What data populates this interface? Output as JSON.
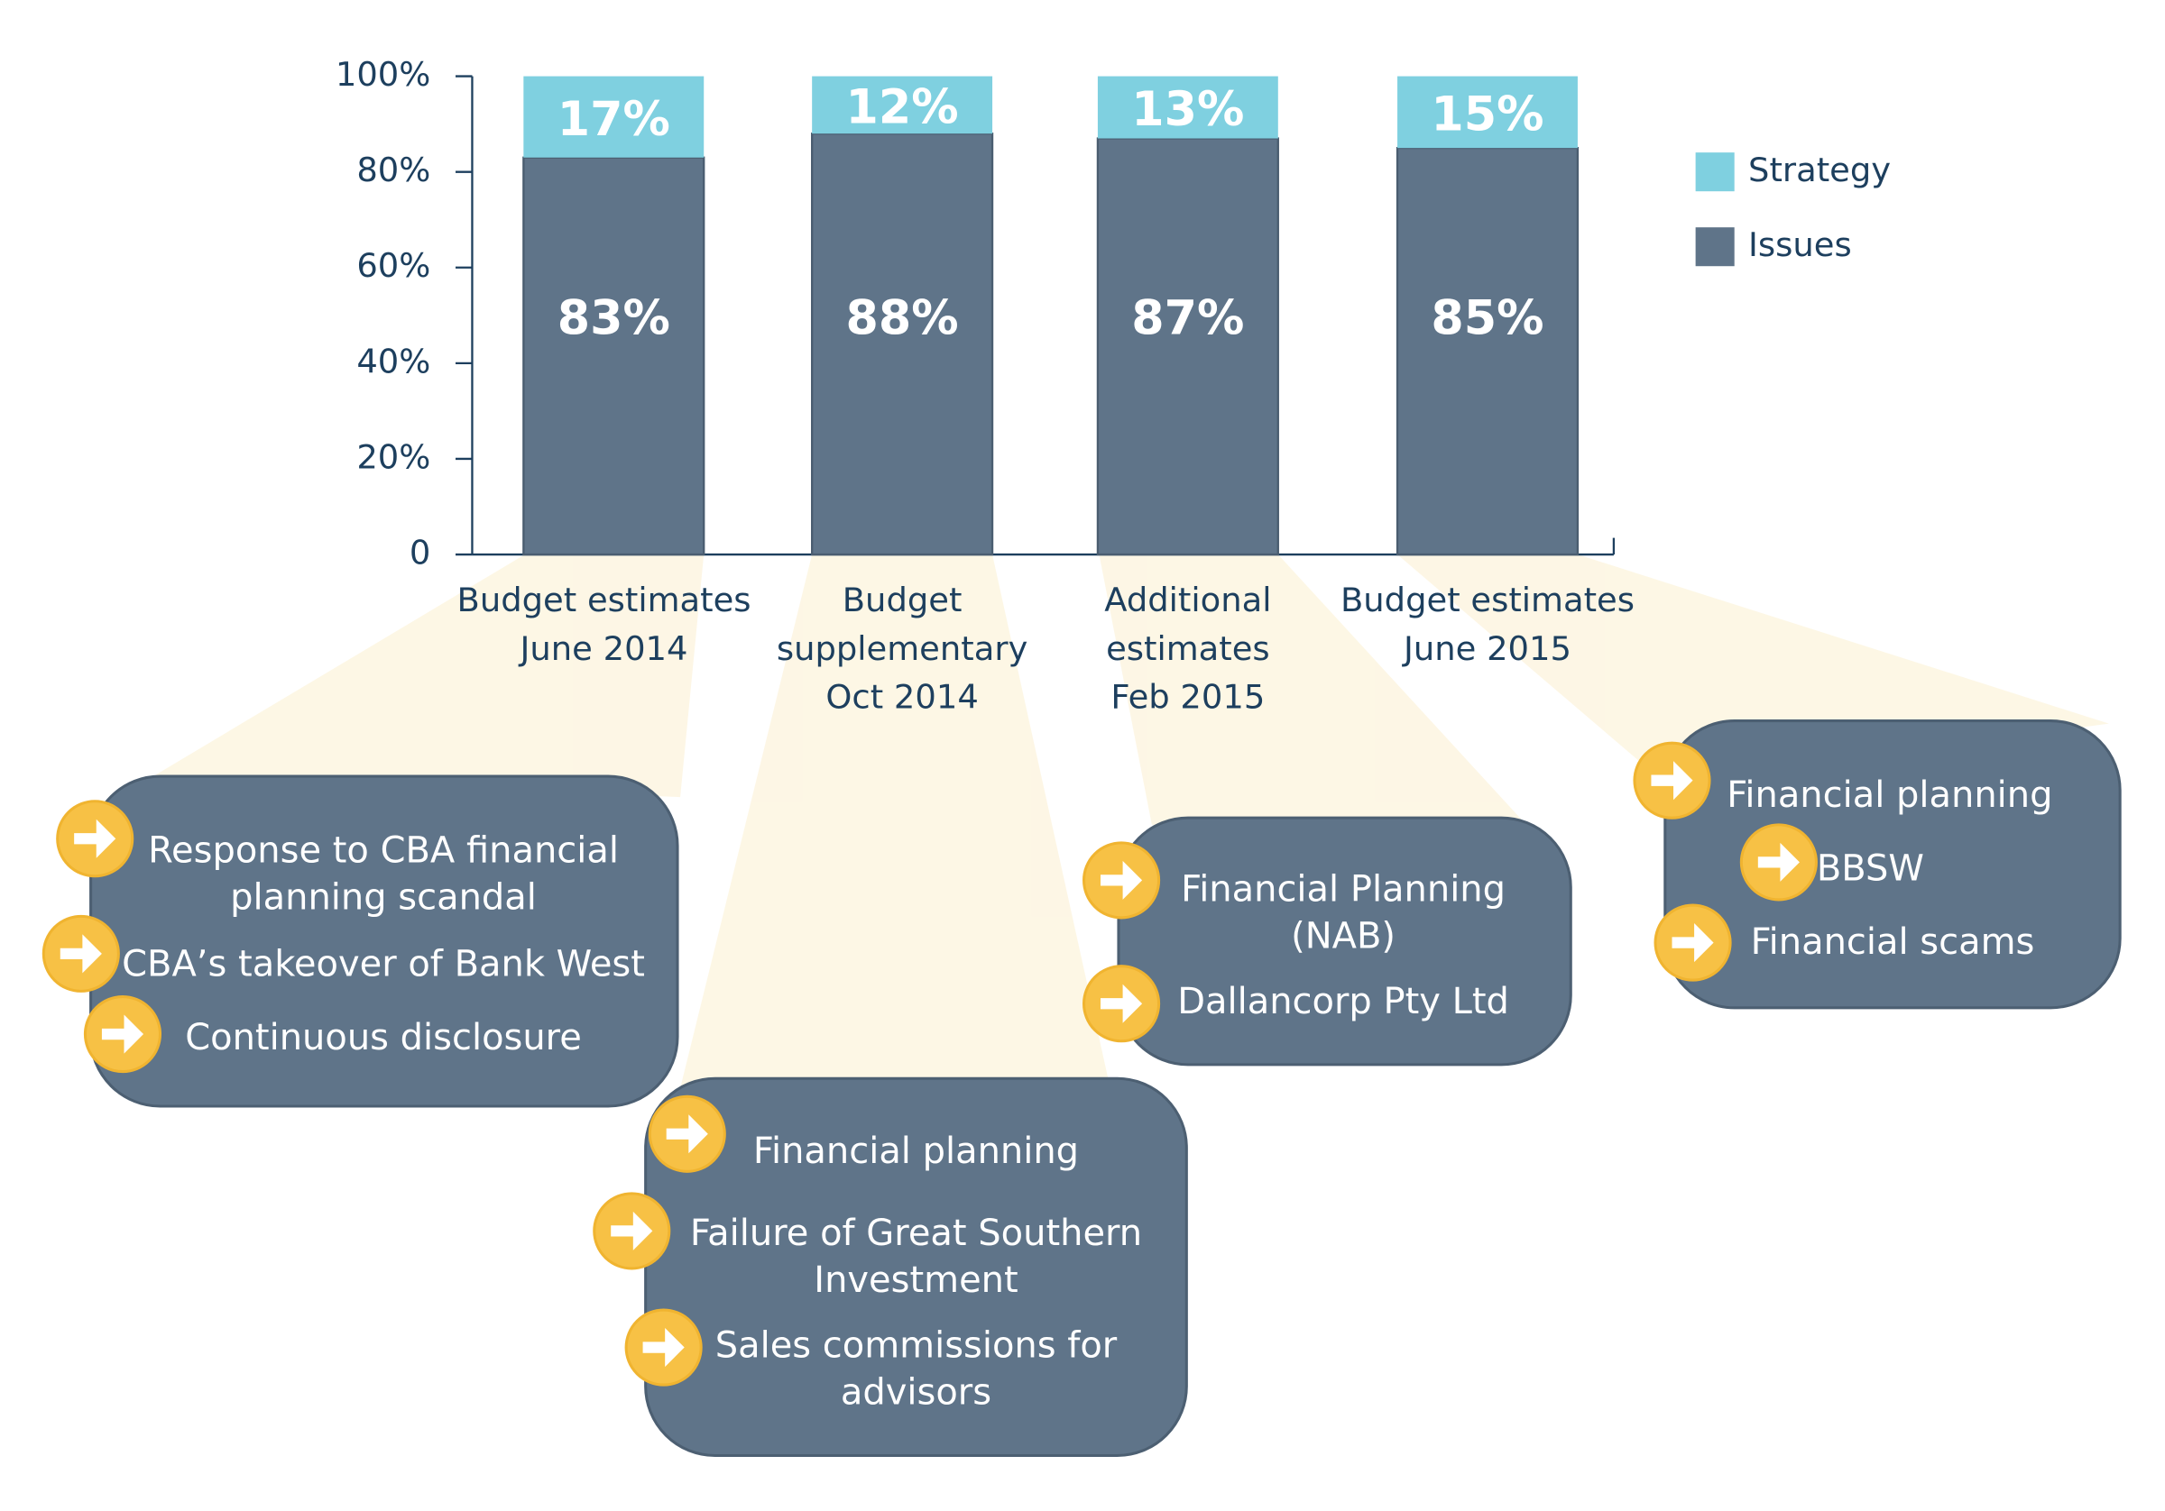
{
  "chart_data": {
    "type": "stacked_bar",
    "categories": [
      "Budget estimates\nJune 2014",
      "Budget\nsupplementary\nOct 2014",
      "Additional\nestimates\nFeb 2015",
      "Budget estimates\nJune 2015"
    ],
    "series": [
      {
        "name": "Issues",
        "color": "#5f7489",
        "values": [
          83,
          88,
          87,
          85
        ],
        "value_labels": [
          "83%",
          "88%",
          "87%",
          "85%"
        ]
      },
      {
        "name": "Strategy",
        "color": "#7fd0e0",
        "values": [
          17,
          12,
          13,
          15
        ],
        "value_labels": [
          "17%",
          "12%",
          "13%",
          "15%"
        ]
      }
    ],
    "ylim": [
      0,
      100
    ],
    "yticks": [
      0,
      {
        "value": 20,
        "label": "20%"
      },
      {
        "value": 40,
        "label": "40%"
      },
      {
        "value": 60,
        "label": "60%"
      },
      {
        "value": 80,
        "label": "80%"
      },
      {
        "value": 100,
        "label": "100%"
      }
    ],
    "legend": "right"
  },
  "callouts": [
    {
      "items": [
        "Response to CBA financial\nplanning scandal",
        "CBA’s takeover of Bank West",
        "Continuous disclosure"
      ]
    },
    {
      "items": [
        "Financial planning",
        "Failure of Great Southern\nInvestment",
        "Sales commissions for\nadvisors"
      ]
    },
    {
      "items": [
        "Financial Planning\n(NAB)",
        "Dallancorp Pty Ltd"
      ]
    },
    {
      "items": [
        "Financial planning",
        "BBSW",
        "Financial scams"
      ]
    }
  ]
}
